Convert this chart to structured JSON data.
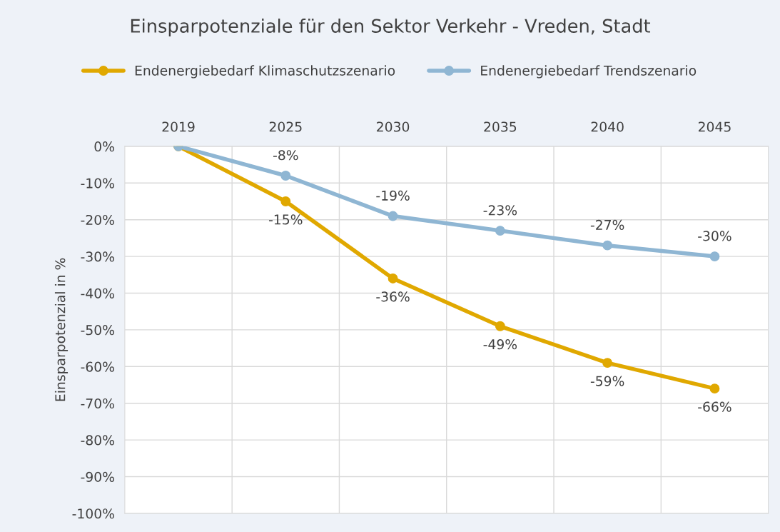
{
  "chart_data": {
    "type": "line",
    "title": "Einsparpotenziale für den Sektor Verkehr - Vreden, Stadt",
    "ylabel": "Einsparpotenzial in %",
    "categories": [
      "2019",
      "2025",
      "2030",
      "2035",
      "2040",
      "2045"
    ],
    "series": [
      {
        "name": "Endenergiebedarf Klimaschutzszenario",
        "color": "#e0a800",
        "values": [
          0,
          -15,
          -36,
          -49,
          -59,
          -66
        ],
        "value_labels": [
          null,
          "-15%",
          "-36%",
          "-49%",
          "-59%",
          "-66%"
        ]
      },
      {
        "name": "Endenergiebedarf Trendszenario",
        "color": "#8fb6d3",
        "values": [
          0,
          -8,
          -19,
          -23,
          -27,
          -30
        ],
        "value_labels": [
          null,
          "-8%",
          "-19%",
          "-23%",
          "-27%",
          "-30%"
        ]
      }
    ],
    "ylim": [
      -100,
      0
    ],
    "yticks": [
      {
        "value": 0,
        "label": "0%"
      },
      {
        "value": -10,
        "label": "-10%"
      },
      {
        "value": -20,
        "label": "-20%"
      },
      {
        "value": -30,
        "label": "-30%"
      },
      {
        "value": -40,
        "label": "-40%"
      },
      {
        "value": -50,
        "label": "-50%"
      },
      {
        "value": -60,
        "label": "-60%"
      },
      {
        "value": -70,
        "label": "-70%"
      },
      {
        "value": -80,
        "label": "-80%"
      },
      {
        "value": -90,
        "label": "-90%"
      },
      {
        "value": -100,
        "label": "-100%"
      }
    ],
    "grid": true,
    "legend": "top",
    "marker": "circle",
    "line_style": "solid"
  }
}
